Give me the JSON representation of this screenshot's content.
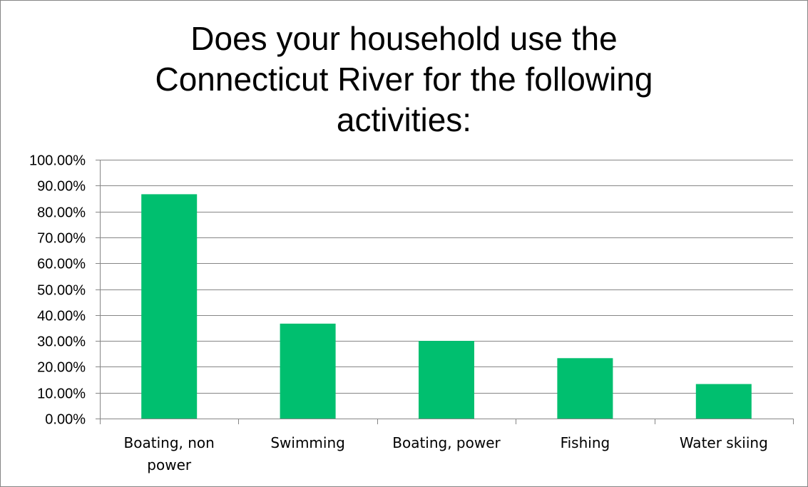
{
  "chart_data": {
    "type": "bar",
    "title_lines": [
      "Does your household use the",
      "Connecticut River for the following",
      "activities:"
    ],
    "categories": [
      [
        "Boating, non",
        "power"
      ],
      [
        "Swimming"
      ],
      [
        "Boating, power"
      ],
      [
        "Fishing"
      ],
      [
        "Water skiing"
      ]
    ],
    "values": [
      86.67,
      36.67,
      30.0,
      23.33,
      13.33
    ],
    "ylim": [
      0,
      100
    ],
    "ytick_step": 10,
    "ytick_labels": [
      "0.00%",
      "10.00%",
      "20.00%",
      "30.00%",
      "40.00%",
      "50.00%",
      "60.00%",
      "70.00%",
      "80.00%",
      "90.00%",
      "100.00%"
    ],
    "grid": true,
    "legend": "none",
    "bar_color": "#00BF6F",
    "gridline_color": "#868686"
  }
}
